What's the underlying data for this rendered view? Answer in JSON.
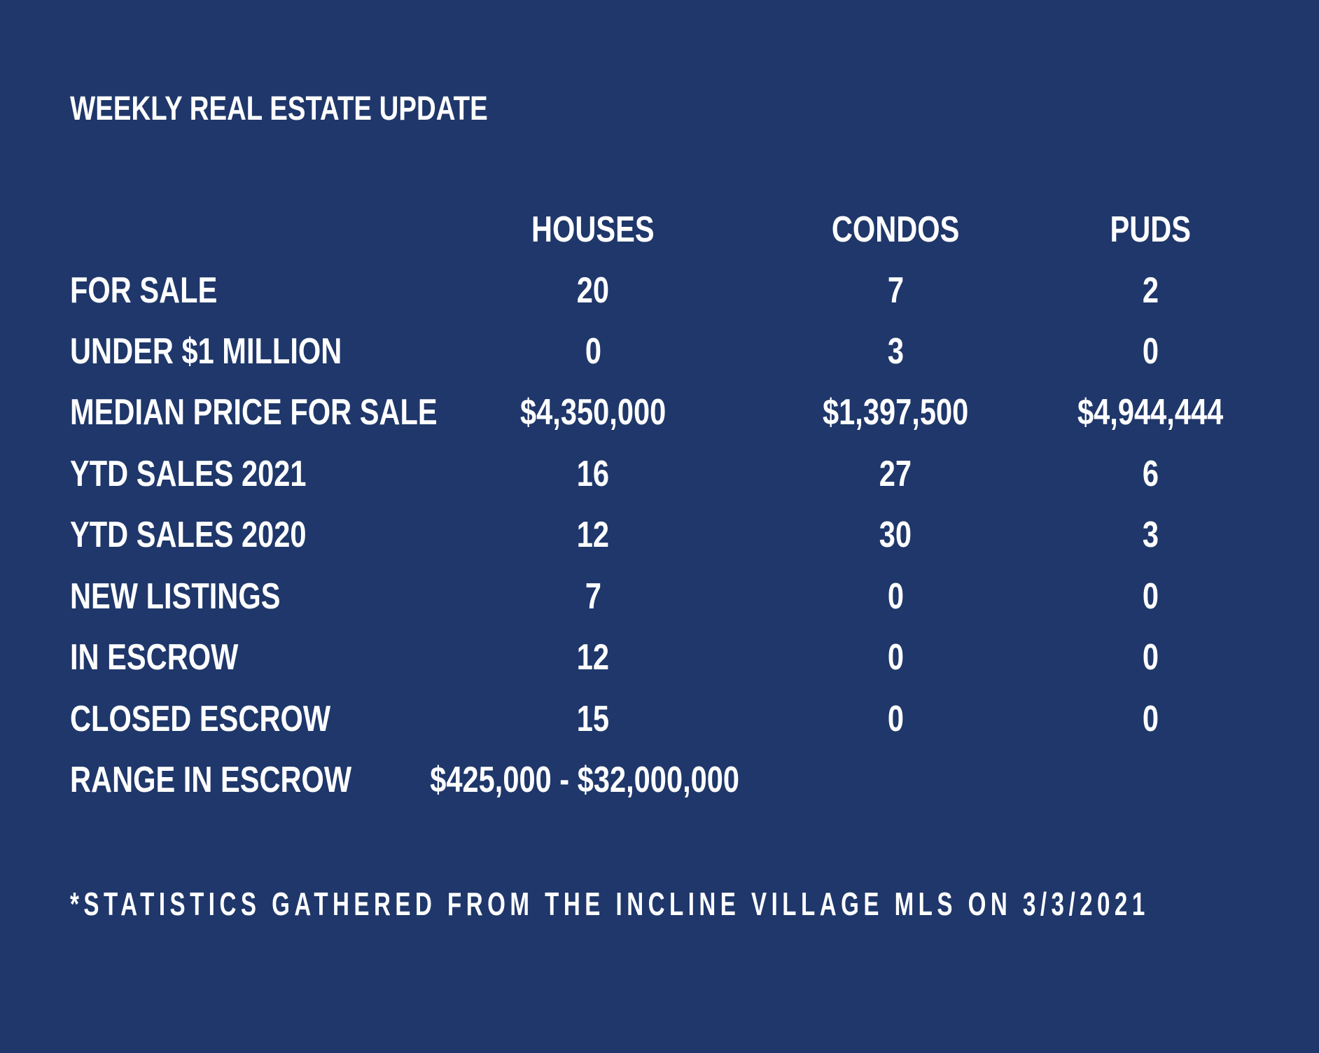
{
  "title": "WEEKLY REAL ESTATE UPDATE",
  "table": {
    "columns": [
      "HOUSES",
      "CONDOS",
      "PUDS"
    ],
    "rows": [
      {
        "label": "FOR SALE",
        "houses": "20",
        "condos": "7",
        "puds": "2"
      },
      {
        "label": "UNDER $1 MILLION",
        "houses": "0",
        "condos": "3",
        "puds": "0"
      },
      {
        "label": "MEDIAN PRICE FOR SALE",
        "houses": "$4,350,000",
        "condos": "$1,397,500",
        "puds": "$4,944,444"
      },
      {
        "label": "YTD SALES 2021",
        "houses": "16",
        "condos": "27",
        "puds": "6"
      },
      {
        "label": "YTD SALES 2020",
        "houses": "12",
        "condos": "30",
        "puds": "3"
      },
      {
        "label": "NEW LISTINGS",
        "houses": "7",
        "condos": "0",
        "puds": "0"
      },
      {
        "label": "IN ESCROW",
        "houses": "12",
        "condos": "0",
        "puds": "0"
      },
      {
        "label": "CLOSED ESCROW",
        "houses": "15",
        "condos": "0",
        "puds": "0"
      }
    ],
    "range": {
      "label": "RANGE IN ESCROW",
      "value": "$425,000 - $32,000,000"
    }
  },
  "footnote": "*STATISTICS GATHERED FROM THE INCLINE VILLAGE MLS ON 3/3/2021",
  "colors": {
    "background": "#1f376a",
    "text": "#ffffff"
  }
}
